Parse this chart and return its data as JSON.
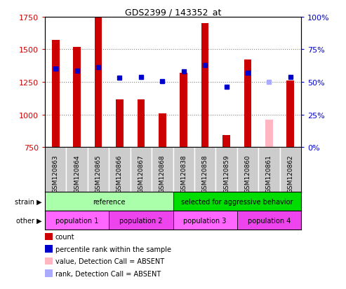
{
  "title": "GDS2399 / 143352_at",
  "samples": [
    "GSM120863",
    "GSM120864",
    "GSM120865",
    "GSM120866",
    "GSM120867",
    "GSM120868",
    "GSM120838",
    "GSM120858",
    "GSM120859",
    "GSM120860",
    "GSM120861",
    "GSM120862"
  ],
  "count_values": [
    1570,
    1520,
    1750,
    1115,
    1115,
    1010,
    1320,
    1700,
    840,
    1420,
    null,
    1260
  ],
  "count_absent": [
    null,
    null,
    null,
    null,
    null,
    null,
    null,
    null,
    null,
    null,
    960,
    null
  ],
  "percentile_values": [
    1350,
    1335,
    1360,
    1280,
    1285,
    1253,
    1330,
    1380,
    1215,
    1320,
    null,
    1290
  ],
  "percentile_absent": [
    null,
    null,
    null,
    null,
    null,
    null,
    null,
    null,
    null,
    null,
    1248,
    null
  ],
  "count_color": "#CC0000",
  "count_absent_color": "#FFB6C1",
  "percentile_color": "#0000CC",
  "percentile_absent_color": "#AAAAFF",
  "ylim_left": [
    750,
    1750
  ],
  "ylim_right": [
    0,
    100
  ],
  "yticks_left": [
    750,
    1000,
    1250,
    1500,
    1750
  ],
  "yticks_right": [
    0,
    25,
    50,
    75,
    100
  ],
  "strain_groups": [
    {
      "label": "reference",
      "start": 0,
      "end": 6,
      "color": "#AAFFAA"
    },
    {
      "label": "selected for aggressive behavior",
      "start": 6,
      "end": 12,
      "color": "#00DD00"
    }
  ],
  "other_groups": [
    {
      "label": "population 1",
      "start": 0,
      "end": 3,
      "color": "#FF66FF"
    },
    {
      "label": "population 2",
      "start": 3,
      "end": 6,
      "color": "#EE44EE"
    },
    {
      "label": "population 3",
      "start": 6,
      "end": 9,
      "color": "#FF66FF"
    },
    {
      "label": "population 4",
      "start": 9,
      "end": 12,
      "color": "#EE44EE"
    }
  ],
  "bar_width": 0.35,
  "marker_size": 5,
  "xtick_bg": "#CCCCCC",
  "legend_items": [
    {
      "color": "#CC0000",
      "label": "count"
    },
    {
      "color": "#0000CC",
      "label": "percentile rank within the sample"
    },
    {
      "color": "#FFB6C1",
      "label": "value, Detection Call = ABSENT"
    },
    {
      "color": "#AAAAFF",
      "label": "rank, Detection Call = ABSENT"
    }
  ]
}
